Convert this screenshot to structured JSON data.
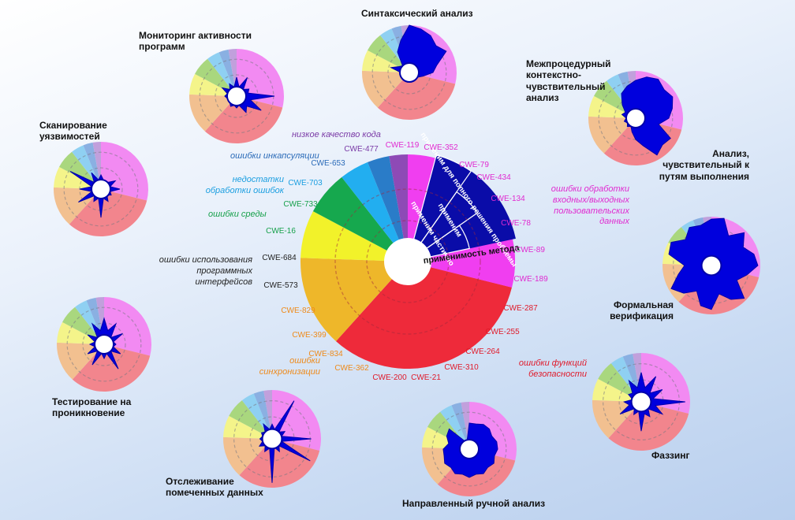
{
  "colors": {
    "pink": "#f03ef0",
    "red": "#ee2a3a",
    "orange": "#eeb72a",
    "yellow": "#f2f22a",
    "green": "#16a84e",
    "cyan": "#22aef0",
    "blue": "#2a7cc8",
    "purple": "#8e4ab6",
    "navy": "#0a0ca8",
    "mark": "#0000dd"
  },
  "center": {
    "sector_labels": [
      "применим для полного решения проблемы",
      "применим",
      "применим частично"
    ],
    "method_label": "применимость метода",
    "categories": {
      "low_quality": "низкое качество кода",
      "encapsulation": "ошибки инкапсуляции",
      "error_handling": "недостатки обработки ошибок",
      "environment": "ошибки среды",
      "api_usage": "ошибки использования программных интерфейсов",
      "synchronization": "ошибки синхронизации",
      "security": "ошибки функций безопасности",
      "io_handling": "ошибки обработки входных/выходных пользовательских данных"
    },
    "cwe": [
      "CWE-119",
      "CWE-352",
      "CWE-79",
      "CWE-434",
      "CWE-134",
      "CWE-78",
      "CWE-89",
      "CWE-189",
      "CWE-287",
      "CWE-255",
      "CWE-264",
      "CWE-310",
      "CWE-21",
      "CWE-200",
      "CWE-362",
      "CWE-834",
      "CWE-399",
      "CWE-829",
      "CWE-573",
      "CWE-684",
      "CWE-16",
      "CWE-733",
      "CWE-703",
      "CWE-653",
      "CWE-477"
    ]
  },
  "methods": [
    {
      "name": "Синтаксический анализ"
    },
    {
      "name": "Межпроцедурный контекстно-чувствительный анализ"
    },
    {
      "name": "Анализ, чувствительный к путям выполнения"
    },
    {
      "name": "Формальная верификация"
    },
    {
      "name": "Фаззинг"
    },
    {
      "name": "Направленный ручной анализ"
    },
    {
      "name": "Отслеживание помеченных данных"
    },
    {
      "name": "Тестирование на проникновение"
    },
    {
      "name": "Сканирование уязвимостей"
    },
    {
      "name": "Мониторинг активности программ"
    }
  ]
}
